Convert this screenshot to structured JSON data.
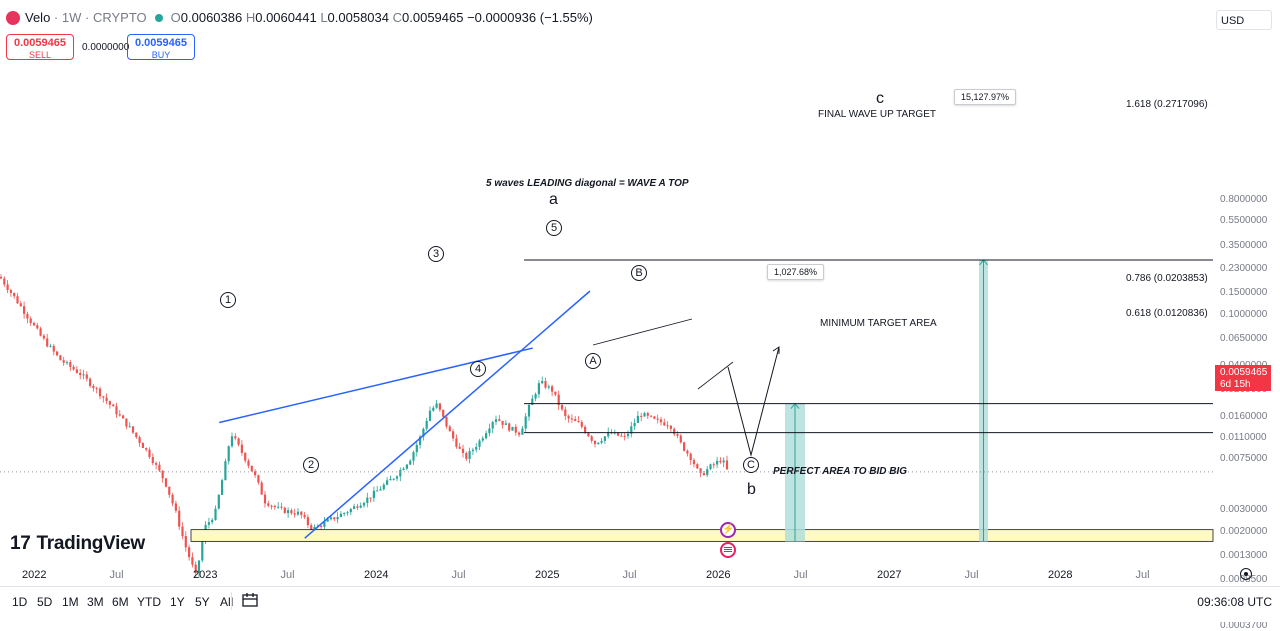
{
  "header": {
    "symbol": "Velo",
    "interval": "1W",
    "exchange": "CRYPTO",
    "ohlc": {
      "o_label": "O",
      "o": "0.0060386",
      "h_label": "H",
      "h": "0.0060441",
      "l_label": "L",
      "l": "0.0058034",
      "c_label": "C",
      "c": "0.0059465",
      "change": "−0.0000936 (−1.55%)"
    }
  },
  "trade": {
    "sell_price": "0.0059465",
    "sell_label": "SELL",
    "spread": "0.0000000",
    "buy_price": "0.0059465",
    "buy_label": "BUY"
  },
  "currency": "USD",
  "price_axis": {
    "ticks": [
      "0.8000000",
      "0.5500000",
      "0.3500000",
      "0.2300000",
      "0.1500000",
      "0.1000000",
      "0.0650000",
      "0.0400000",
      "0.0260000",
      "0.0160000",
      "0.0110000",
      "0.0075000",
      "0.0030000",
      "0.0020000",
      "0.0013000",
      "0.0008500",
      "0.0005500",
      "0.0003700"
    ],
    "current_price": "0.0059465",
    "countdown": "6d 15h"
  },
  "time_axis": {
    "labels": [
      {
        "t": "2022",
        "year": true
      },
      {
        "t": "Jul",
        "year": false
      },
      {
        "t": "2023",
        "year": true
      },
      {
        "t": "Jul",
        "year": false
      },
      {
        "t": "2024",
        "year": true
      },
      {
        "t": "Jul",
        "year": false
      },
      {
        "t": "2025",
        "year": true
      },
      {
        "t": "Jul",
        "year": false
      },
      {
        "t": "2026",
        "year": true
      },
      {
        "t": "Jul",
        "year": false
      },
      {
        "t": "2027",
        "year": true
      },
      {
        "t": "Jul",
        "year": false
      },
      {
        "t": "2028",
        "year": true
      },
      {
        "t": "Jul",
        "year": false
      }
    ]
  },
  "annotations": {
    "diagonal_note": "5 waves LEADING diagonal = WAVE A TOP",
    "wave_a": "a",
    "wave_b": "b",
    "wave_c": "c",
    "final_target": "FINAL WAVE UP TARGET",
    "min_target": "MINIMUM TARGET AREA",
    "bid_area": "PERFECT AREA TO BID BIG",
    "fib_1618": "1.618 (0.2717096)",
    "fib_0786": "0.786 (0.0203853)",
    "fib_0618": "0.618 (0.0120836)",
    "pct_big": "15,127.97%",
    "pct_small": "1,027.68%",
    "w1": "1",
    "w2": "2",
    "w3": "3",
    "w4": "4",
    "w5": "5",
    "wA": "A",
    "wB": "B",
    "wC": "C"
  },
  "toolbar": {
    "timeframes": [
      "1D",
      "5D",
      "1M",
      "3M",
      "6M",
      "YTD",
      "1Y",
      "5Y",
      "All"
    ],
    "clock": "09:36:08 UTC"
  },
  "logo_text": "TradingView",
  "colors": {
    "up": "#26a69a",
    "down": "#ef5350",
    "trendline": "#2962ff",
    "target_zone": "#b2dfdb",
    "support_zone": "#fff9c4"
  },
  "chart_data": {
    "type": "candlestick",
    "title": "Velo · 1W · CRYPTO",
    "y_scale": "log",
    "ylim": [
      0.00037,
      0.8
    ],
    "x_range": [
      "2022-01",
      "2028-07"
    ],
    "fib_levels": [
      {
        "ratio": 1.618,
        "price": 0.2717096
      },
      {
        "ratio": 0.786,
        "price": 0.0203853
      },
      {
        "ratio": 0.618,
        "price": 0.0120836
      }
    ],
    "support_zone": [
      0.0017,
      0.0021
    ],
    "last_close": 0.0059465,
    "wave_points": [
      {
        "label": "1",
        "date": "2023-02",
        "price": 0.0145
      },
      {
        "label": "2",
        "date": "2023-08",
        "price": 0.0018
      },
      {
        "label": "3",
        "date": "2024-05",
        "price": 0.024
      },
      {
        "label": "4",
        "date": "2024-08",
        "price": 0.0068
      },
      {
        "label": "5",
        "date": "2024-12",
        "price": 0.036
      },
      {
        "label": "A",
        "date": "2025-03",
        "price": 0.0095
      },
      {
        "label": "B",
        "date": "2025-07",
        "price": 0.019
      },
      {
        "label": "C",
        "date": "2026-03",
        "price": 0.0019
      }
    ],
    "projections": [
      {
        "label": "1,027.68%",
        "target": 0.0203853
      },
      {
        "label": "15,127.97%",
        "target": 0.2717096
      }
    ]
  }
}
